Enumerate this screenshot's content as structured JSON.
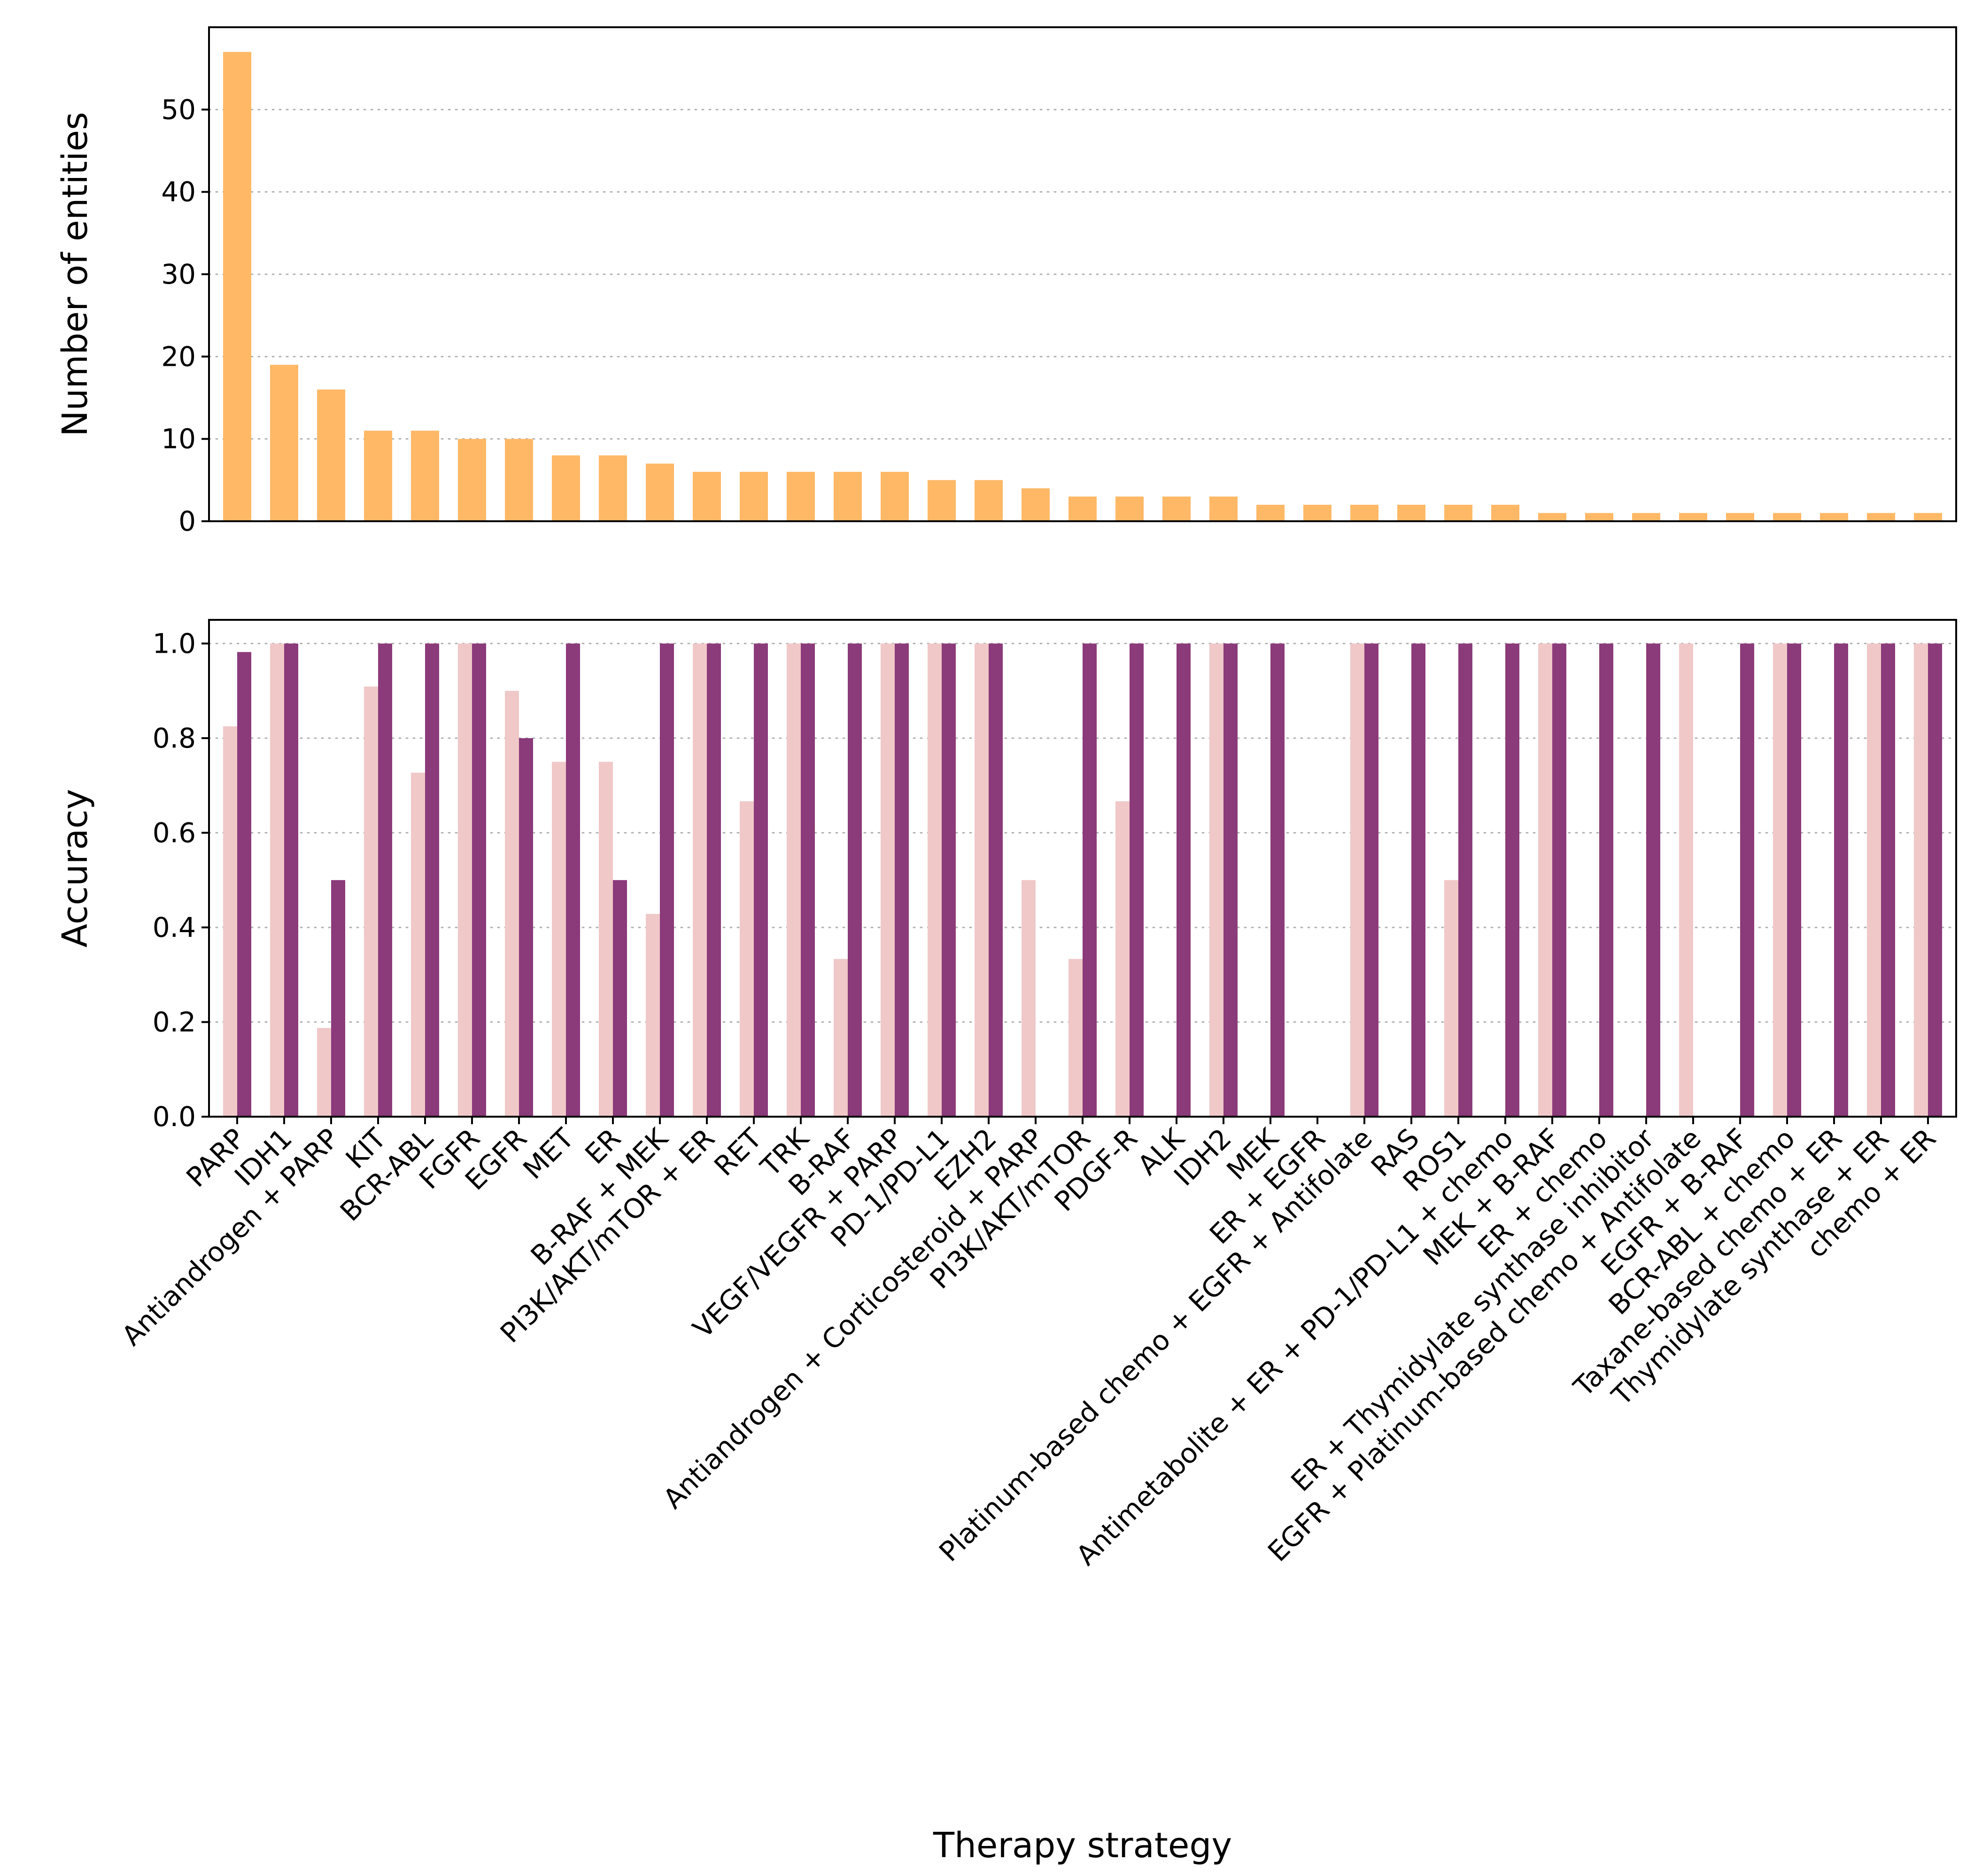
{
  "chart_data": [
    {
      "type": "bar",
      "ylabel": "Number of entities",
      "ylim": [
        0,
        60
      ],
      "yticks": [
        0,
        10,
        20,
        30,
        40,
        50
      ],
      "grid": "y-dotted",
      "color": "#ffb866",
      "categories": [
        "PARP",
        "IDH1",
        "Antiandrogen + PARP",
        "KIT",
        "BCR-ABL",
        "FGFR",
        "EGFR",
        "MET",
        "ER",
        "B-RAF + MEK",
        "PI3K/AKT/mTOR + ER",
        "RET",
        "TRK",
        "B-RAF",
        "VEGF/VEGFR + PARP",
        "PD-1/PD-L1",
        "EZH2",
        "Antiandrogen + Corticosteroid + PARP",
        "PI3K/AKT/mTOR",
        "PDGF-R",
        "ALK",
        "IDH2",
        "MEK",
        "ER + EGFR",
        "Platinum-based chemo + EGFR + Antifolate",
        "RAS",
        "ROS1",
        "Antimetabolite + ER + PD-1/PD-L1 + chemo",
        "MEK + B-RAF",
        "ER + chemo",
        "ER + Thymidylate synthase inhibitor",
        "EGFR + Platinum-based chemo + Antifolate",
        "EGFR + B-RAF",
        "BCR-ABL + chemo",
        "Taxane-based chemo + ER",
        "Thymidylate synthase + ER",
        "chemo + ER"
      ],
      "values": [
        57,
        19,
        16,
        11,
        11,
        10,
        10,
        8,
        8,
        7,
        6,
        6,
        6,
        6,
        6,
        5,
        5,
        4,
        3,
        3,
        3,
        3,
        2,
        2,
        2,
        2,
        2,
        2,
        1,
        1,
        1,
        1,
        1,
        1,
        1,
        1,
        1
      ]
    },
    {
      "type": "bar",
      "xlabel": "Therapy strategy",
      "ylabel": "Accuracy",
      "ylim": [
        0,
        1.05
      ],
      "yticks": [
        "0.0",
        "0.2",
        "0.4",
        "0.6",
        "0.8",
        "1.0"
      ],
      "grid": "y-dotted",
      "categories": [
        "PARP",
        "IDH1",
        "Antiandrogen + PARP",
        "KIT",
        "BCR-ABL",
        "FGFR",
        "EGFR",
        "MET",
        "ER",
        "B-RAF + MEK",
        "PI3K/AKT/mTOR + ER",
        "RET",
        "TRK",
        "B-RAF",
        "VEGF/VEGFR + PARP",
        "PD-1/PD-L1",
        "EZH2",
        "Antiandrogen + Corticosteroid + PARP",
        "PI3K/AKT/mTOR",
        "PDGF-R",
        "ALK",
        "IDH2",
        "MEK",
        "ER + EGFR",
        "Platinum-based chemo + EGFR + Antifolate",
        "RAS",
        "ROS1",
        "Antimetabolite + ER + PD-1/PD-L1 + chemo",
        "MEK + B-RAF",
        "ER + chemo",
        "ER + Thymidylate synthase inhibitor",
        "EGFR + Platinum-based chemo + Antifolate",
        "EGFR + B-RAF",
        "BCR-ABL + chemo",
        "Taxane-based chemo + ER",
        "Thymidylate synthase + ER",
        "chemo + ER"
      ],
      "series": [
        {
          "color": "#f0c8c8",
          "values": [
            0.825,
            1.0,
            0.1875,
            0.909,
            0.727,
            1.0,
            0.9,
            0.75,
            0.75,
            0.4286,
            1.0,
            0.6667,
            1.0,
            0.3333,
            1.0,
            1.0,
            1.0,
            0.5,
            0.3333,
            0.6667,
            0,
            1.0,
            0,
            0,
            1.0,
            0,
            0.5,
            0,
            1.0,
            0,
            0,
            1.0,
            0,
            1.0,
            0,
            1.0,
            1.0
          ]
        },
        {
          "color": "#8b3a7a",
          "values": [
            0.982,
            1.0,
            0.5,
            1.0,
            1.0,
            1.0,
            0.8,
            1.0,
            0.5,
            1.0,
            1.0,
            1.0,
            1.0,
            1.0,
            1.0,
            1.0,
            1.0,
            0,
            1.0,
            1.0,
            1.0,
            1.0,
            1.0,
            0,
            1.0,
            1.0,
            1.0,
            1.0,
            1.0,
            1.0,
            1.0,
            0,
            1.0,
            1.0,
            1.0,
            1.0,
            1.0
          ]
        }
      ]
    }
  ]
}
